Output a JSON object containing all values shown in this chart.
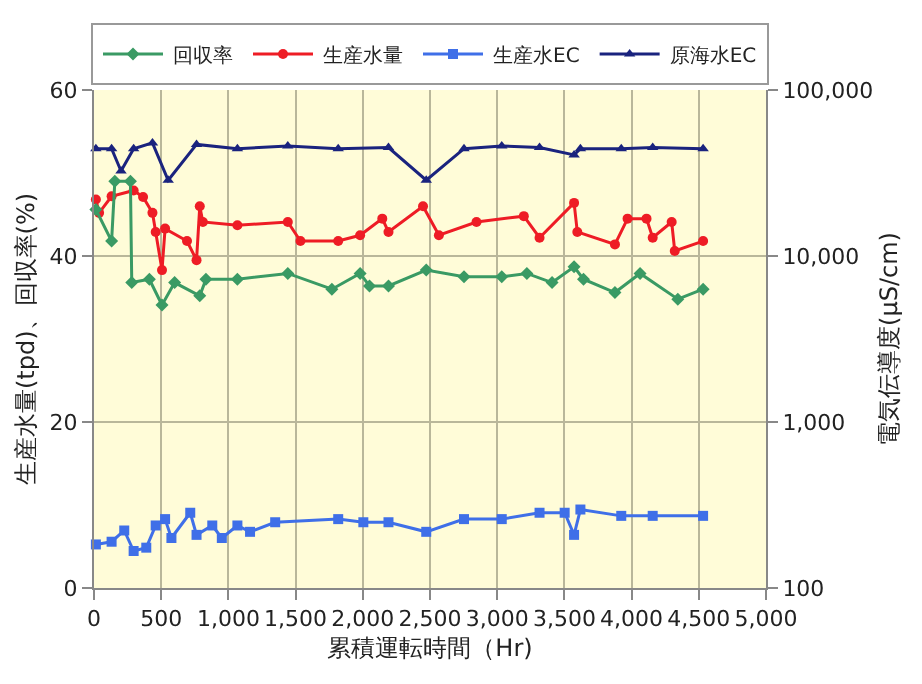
{
  "chart_data": {
    "type": "line",
    "xlabel": "累積運転時間（Hr)",
    "ylabel": "生産水量(tpd)、回収率(%)",
    "y2label": "電気伝導度(μS/cm)",
    "xlim": [
      0,
      5000
    ],
    "xticks": [
      0,
      {
        "value": 500,
        "label": "500"
      },
      {
        "value": 1000,
        "label": "1,000"
      },
      {
        "value": 1500,
        "label": "1,500"
      },
      {
        "value": 2000,
        "label": "2,000"
      },
      {
        "value": 2500,
        "label": "2,500"
      },
      {
        "value": 3000,
        "label": "3,000"
      },
      {
        "value": 3500,
        "label": "3,500"
      },
      {
        "value": 4000,
        "label": "4,000"
      },
      {
        "value": 4500,
        "label": "4,500"
      },
      {
        "value": 5000,
        "label": "5,000"
      }
    ],
    "ylim": [
      0,
      60
    ],
    "yticks": [
      0,
      20,
      40,
      60
    ],
    "y2lim": [
      100,
      100000
    ],
    "y2ticks": [
      100,
      {
        "value": 1000,
        "label": "1,000"
      },
      {
        "value": 10000,
        "label": "10,000"
      },
      {
        "value": 100000,
        "label": "100,000"
      }
    ],
    "log": "y2",
    "grid": true,
    "legend": "top",
    "line_style": "solid",
    "series": [
      {
        "name": "回収率",
        "color": "#3a9a64",
        "marker": "diamond",
        "x": [
          14,
          131,
          155,
          271,
          281,
          412,
          506,
          600,
          787,
          833,
          1067,
          1442,
          1770,
          1980,
          2050,
          2191,
          2472,
          2753,
          3034,
          3221,
          3408,
          3572,
          3642,
          3876,
          4063,
          4344,
          4532
        ],
        "values": [
          45.6,
          41.8,
          49,
          49,
          36.8,
          37.2,
          34.1,
          36.8,
          35.2,
          37.2,
          37.2,
          37.9,
          36,
          37.9,
          36.4,
          36.4,
          38.3,
          37.5,
          37.5,
          37.9,
          36.8,
          38.7,
          37.2,
          35.6,
          37.9,
          34.8,
          36
        ]
      },
      {
        "name": "生産水量",
        "color": "#ee1c25",
        "marker": "circle",
        "x": [
          14,
          38,
          131,
          295,
          365,
          435,
          459,
          506,
          529,
          692,
          763,
          787,
          810,
          1067,
          1442,
          1536,
          1817,
          1980,
          2145,
          2191,
          2448,
          2566,
          2846,
          3198,
          3315,
          3572,
          3596,
          3876,
          3970,
          4111,
          4157,
          4298,
          4321,
          4532
        ],
        "values": [
          46.8,
          45.2,
          47.2,
          47.9,
          47.1,
          45.2,
          42.9,
          38.3,
          43.3,
          41.8,
          39.5,
          46,
          44.1,
          43.7,
          44.1,
          41.8,
          41.8,
          42.5,
          44.5,
          42.9,
          46,
          42.5,
          44.1,
          44.8,
          42.2,
          46.4,
          42.9,
          41.4,
          44.5,
          44.5,
          42.2,
          44.1,
          40.6,
          41.8
        ]
      },
      {
        "name": "生産水EC",
        "color": "#3f6fe8",
        "marker": "square",
        "axis": "y2",
        "x": [
          14,
          131,
          225,
          295,
          389,
          459,
          529,
          576,
          716,
          763,
          880,
          951,
          1067,
          1161,
          1348,
          1817,
          2004,
          2191,
          2472,
          2753,
          3034,
          3315,
          3502,
          3572,
          3619,
          3923,
          4157,
          4532
        ],
        "values": [
          183,
          190,
          222,
          167,
          175,
          238,
          260,
          200,
          284,
          209,
          238,
          200,
          238,
          218,
          249,
          260,
          249,
          249,
          218,
          260,
          260,
          284,
          284,
          209,
          297,
          272,
          272,
          272
        ]
      },
      {
        "name": "原海水EC",
        "color": "#1a237e",
        "marker": "triangle",
        "axis": "y2",
        "x": [
          14,
          131,
          201,
          295,
          435,
          552,
          763,
          1067,
          1442,
          1817,
          2191,
          2472,
          2753,
          3034,
          3315,
          3572,
          3619,
          3923,
          4157,
          4532
        ],
        "values": [
          44300,
          44300,
          32500,
          44300,
          48000,
          28600,
          47000,
          44300,
          46000,
          44300,
          45000,
          28600,
          44300,
          46000,
          45000,
          40600,
          44300,
          44300,
          45000,
          44300
        ]
      }
    ]
  }
}
